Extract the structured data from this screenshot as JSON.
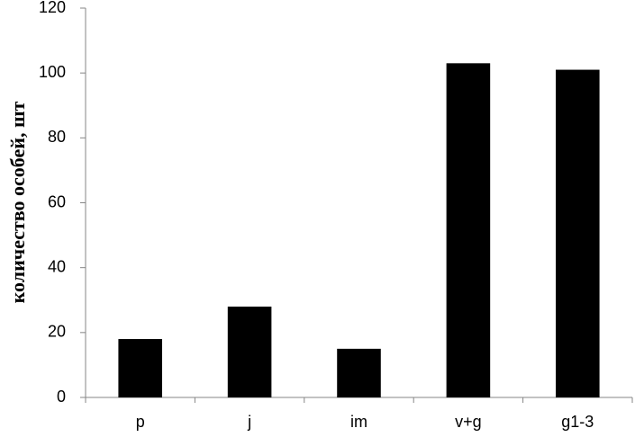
{
  "chart_data": {
    "type": "bar",
    "y_label": "количество особей, шт",
    "categories": [
      "p",
      "j",
      "im",
      "v+g",
      "g1-3"
    ],
    "values": [
      18,
      28,
      15,
      103,
      101
    ],
    "color": "#000000",
    "ylim": [
      0,
      120
    ],
    "yticks": [
      0,
      20,
      40,
      60,
      80,
      100,
      120
    ],
    "grid": false
  }
}
